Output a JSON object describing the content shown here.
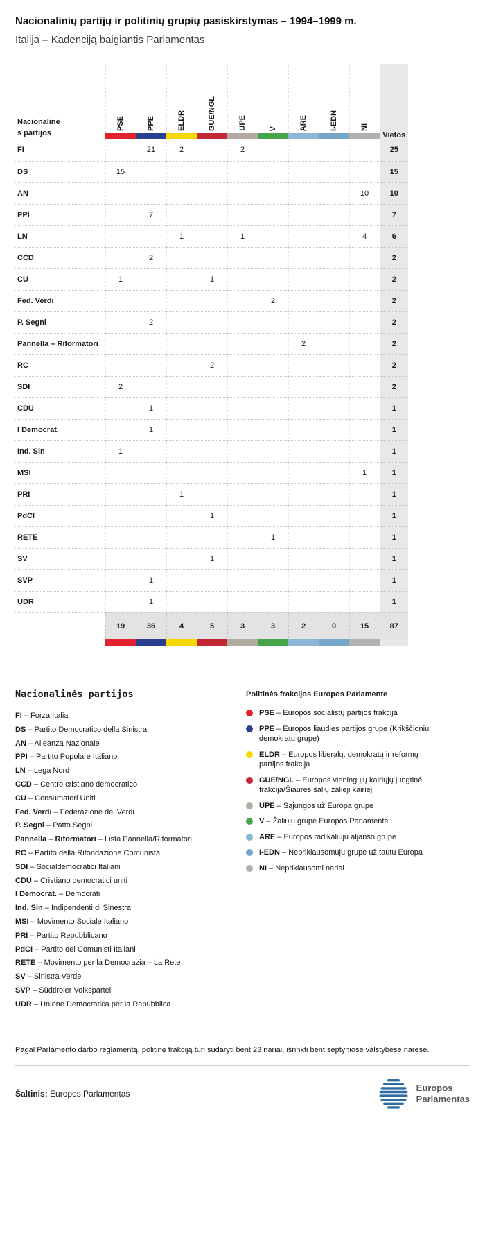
{
  "chart_data": {
    "type": "table",
    "title": "Nacionalinių partijų ir politinių grupių pasiskirstymas – 1994–1999 m.",
    "subtitle": "Italija – Kadenciją baigiantis Parlamentas",
    "row_header_label": "Nacionalinės partijos",
    "seats_label": "Vietos",
    "groups": [
      {
        "code": "PSE",
        "color": "#e32230"
      },
      {
        "code": "PPE",
        "color": "#2a3f90"
      },
      {
        "code": "ELDR",
        "color": "#f5d800"
      },
      {
        "code": "GUE/NGL",
        "color": "#c32732"
      },
      {
        "code": "UPE",
        "color": "#b2aba1"
      },
      {
        "code": "V",
        "color": "#46a44a"
      },
      {
        "code": "ARE",
        "color": "#8cb6d3"
      },
      {
        "code": "I-EDN",
        "color": "#74a7c9"
      },
      {
        "code": "NI",
        "color": "#b1b1b1"
      }
    ],
    "rows": [
      {
        "party": "FI",
        "values": [
          "",
          "21",
          "2",
          "",
          "2",
          "",
          "",
          "",
          ""
        ],
        "seats": "25"
      },
      {
        "party": "DS",
        "values": [
          "15",
          "",
          "",
          "",
          "",
          "",
          "",
          "",
          ""
        ],
        "seats": "15"
      },
      {
        "party": "AN",
        "values": [
          "",
          "",
          "",
          "",
          "",
          "",
          "",
          "",
          "10"
        ],
        "seats": "10"
      },
      {
        "party": "PPI",
        "values": [
          "",
          "7",
          "",
          "",
          "",
          "",
          "",
          "",
          ""
        ],
        "seats": "7"
      },
      {
        "party": "LN",
        "values": [
          "",
          "",
          "1",
          "",
          "1",
          "",
          "",
          "",
          "4"
        ],
        "seats": "6"
      },
      {
        "party": "CCD",
        "values": [
          "",
          "2",
          "",
          "",
          "",
          "",
          "",
          "",
          ""
        ],
        "seats": "2"
      },
      {
        "party": "CU",
        "values": [
          "1",
          "",
          "",
          "1",
          "",
          "",
          "",
          "",
          ""
        ],
        "seats": "2"
      },
      {
        "party": "Fed. Verdi",
        "values": [
          "",
          "",
          "",
          "",
          "",
          "2",
          "",
          "",
          ""
        ],
        "seats": "2"
      },
      {
        "party": "P. Segni",
        "values": [
          "",
          "2",
          "",
          "",
          "",
          "",
          "",
          "",
          ""
        ],
        "seats": "2"
      },
      {
        "party": "Pannella – Riformatori",
        "values": [
          "",
          "",
          "",
          "",
          "",
          "",
          "2",
          "",
          ""
        ],
        "seats": "2"
      },
      {
        "party": "RC",
        "values": [
          "",
          "",
          "",
          "2",
          "",
          "",
          "",
          "",
          ""
        ],
        "seats": "2"
      },
      {
        "party": "SDI",
        "values": [
          "2",
          "",
          "",
          "",
          "",
          "",
          "",
          "",
          ""
        ],
        "seats": "2"
      },
      {
        "party": "CDU",
        "values": [
          "",
          "1",
          "",
          "",
          "",
          "",
          "",
          "",
          ""
        ],
        "seats": "1"
      },
      {
        "party": "I Democrat.",
        "values": [
          "",
          "1",
          "",
          "",
          "",
          "",
          "",
          "",
          ""
        ],
        "seats": "1"
      },
      {
        "party": "Ind. Sin",
        "values": [
          "1",
          "",
          "",
          "",
          "",
          "",
          "",
          "",
          ""
        ],
        "seats": "1"
      },
      {
        "party": "MSI",
        "values": [
          "",
          "",
          "",
          "",
          "",
          "",
          "",
          "",
          "1"
        ],
        "seats": "1"
      },
      {
        "party": "PRI",
        "values": [
          "",
          "",
          "1",
          "",
          "",
          "",
          "",
          "",
          ""
        ],
        "seats": "1"
      },
      {
        "party": "PdCI",
        "values": [
          "",
          "",
          "",
          "1",
          "",
          "",
          "",
          "",
          ""
        ],
        "seats": "1"
      },
      {
        "party": "RETE",
        "values": [
          "",
          "",
          "",
          "",
          "",
          "1",
          "",
          "",
          ""
        ],
        "seats": "1"
      },
      {
        "party": "SV",
        "values": [
          "",
          "",
          "",
          "1",
          "",
          "",
          "",
          "",
          ""
        ],
        "seats": "1"
      },
      {
        "party": "SVP",
        "values": [
          "",
          "1",
          "",
          "",
          "",
          "",
          "",
          "",
          ""
        ],
        "seats": "1"
      },
      {
        "party": "UDR",
        "values": [
          "",
          "1",
          "",
          "",
          "",
          "",
          "",
          "",
          ""
        ],
        "seats": "1"
      }
    ],
    "totals": {
      "values": [
        "19",
        "36",
        "4",
        "5",
        "3",
        "3",
        "2",
        "0",
        "15"
      ],
      "seats": "87"
    }
  },
  "legend_left": {
    "heading": "Nacionalinės partijos",
    "separator": " – ",
    "items": [
      {
        "code": "FI",
        "name": "Forza Italia"
      },
      {
        "code": "DS",
        "name": "Partito Democratico della Sinistra"
      },
      {
        "code": "AN",
        "name": "Alleanza Nazionale"
      },
      {
        "code": "PPI",
        "name": "Partito Popolare Italiano"
      },
      {
        "code": "LN",
        "name": "Lega Nord"
      },
      {
        "code": "CCD",
        "name": "Centro cristiano democratico"
      },
      {
        "code": "CU",
        "name": "Consumatori Uniti"
      },
      {
        "code": "Fed. Verdi",
        "name": "Federazione dei Verdi"
      },
      {
        "code": "P. Segni",
        "name": "Patto Segni"
      },
      {
        "code": "Pannella – Riformatori",
        "name": "Lista Pannella/Riformatori"
      },
      {
        "code": "RC",
        "name": "Partito della Rifondazione Comunista"
      },
      {
        "code": "SDI",
        "name": "Socialdemocratici Italiani"
      },
      {
        "code": "CDU",
        "name": "Cristiano democratici uniti"
      },
      {
        "code": "I Democrat.",
        "name": "Democrati"
      },
      {
        "code": "Ind. Sin",
        "name": "Indipendenti di Sinestra"
      },
      {
        "code": "MSI",
        "name": "Movimento Sociale Italiano"
      },
      {
        "code": "PRI",
        "name": "Partito Repubblicano"
      },
      {
        "code": "PdCI",
        "name": "Partito dei Comunisti Italiani"
      },
      {
        "code": "RETE",
        "name": "Movimento per la Democrazia – La Rete"
      },
      {
        "code": "SV",
        "name": "Sinistra Verde"
      },
      {
        "code": "SVP",
        "name": "Südtiroler Volkspartei"
      },
      {
        "code": "UDR",
        "name": "Unione Democratica per la Repubblica"
      }
    ]
  },
  "legend_right": {
    "heading": "Politinės frakcijos Europos Parlamente",
    "separator": " – ",
    "items": [
      {
        "code": "PSE",
        "color": "#e32230",
        "name": "Europos socialistų partijos frakcija"
      },
      {
        "code": "PPE",
        "color": "#2a3f90",
        "name": "Europos liaudies partijos grupe (Krikščioniu demokratu grupe)"
      },
      {
        "code": "ELDR",
        "color": "#f5d800",
        "name": "Europos liberalų, demokratų ir reformų partijos frakcija"
      },
      {
        "code": "GUE/NGL",
        "color": "#c32732",
        "name": "Europos vieningųjų kairiųjų jungtinė frakcija/Šiaurės šalių žalieji kairieji"
      },
      {
        "code": "UPE",
        "color": "#b2aba1",
        "name": "Sąjungos už Europa grupe"
      },
      {
        "code": "V",
        "color": "#46a44a",
        "name": "Žaliuju grupe Europos Parlamente"
      },
      {
        "code": "ARE",
        "color": "#8cb6d3",
        "name": "Europos radikaliuju aljanso grupe"
      },
      {
        "code": "I-EDN",
        "color": "#74a7c9",
        "name": "Nepriklausomuju grupe už tautu Europa"
      },
      {
        "code": "NI",
        "color": "#b1b1b1",
        "name": "Nepriklausomi nariai"
      }
    ]
  },
  "footer": {
    "note": "Pagal Parlamento darbo reglamentą, politinę frakciją turi sudaryti bent 23 nariai, išrinkti bent septyniose valstybėse narėse.",
    "source_label": "Šaltinis:",
    "source_name": "Europos Parlamentas",
    "logo_line1": "Europos",
    "logo_line2": "Parlamentas",
    "logo_color": "#2e6da4"
  }
}
